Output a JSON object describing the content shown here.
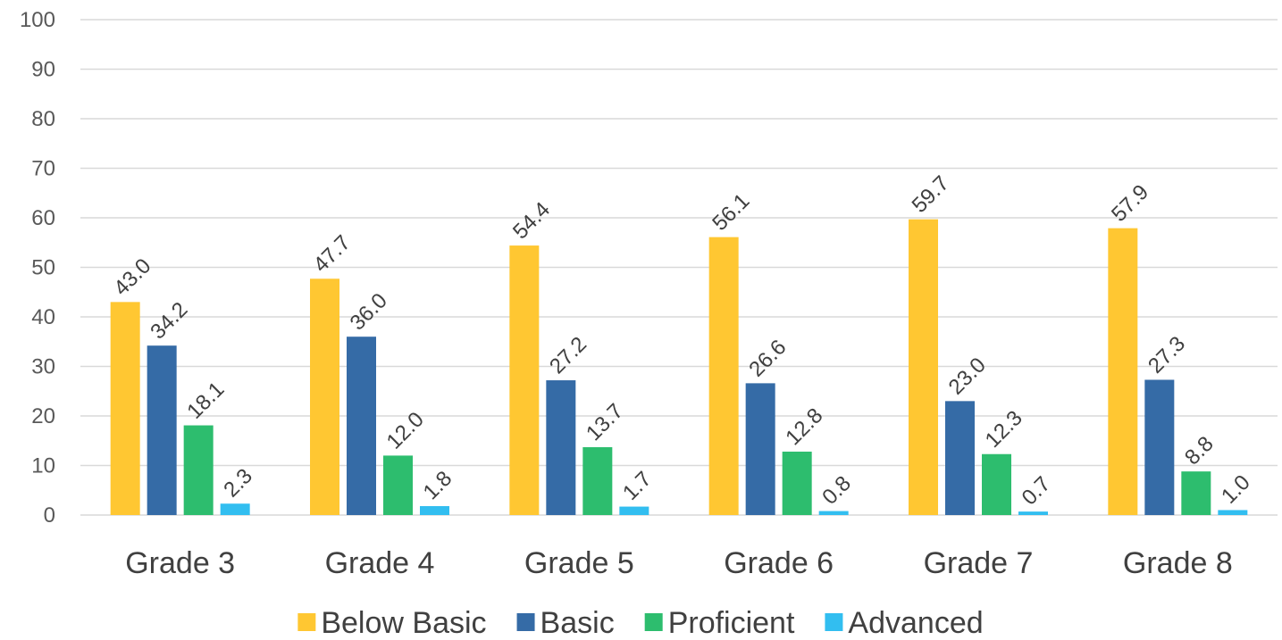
{
  "chart_data": {
    "type": "bar",
    "categories": [
      "Grade 3",
      "Grade 4",
      "Grade 5",
      "Grade 6",
      "Grade 7",
      "Grade 8"
    ],
    "series": [
      {
        "name": "Below Basic",
        "color": "#FFC732",
        "values": [
          43.0,
          47.7,
          54.4,
          56.1,
          59.7,
          57.9
        ]
      },
      {
        "name": "Basic",
        "color": "#356BA6",
        "values": [
          34.2,
          36.0,
          27.2,
          26.6,
          23.0,
          27.3
        ]
      },
      {
        "name": "Proficient",
        "color": "#2DBD6E",
        "values": [
          18.1,
          12.0,
          13.7,
          12.8,
          12.3,
          8.8
        ]
      },
      {
        "name": "Advanced",
        "color": "#32BEF0",
        "values": [
          2.3,
          1.8,
          1.7,
          0.8,
          0.7,
          1.0
        ]
      }
    ],
    "data_labels": [
      [
        "43.0",
        "47.7",
        "54.4",
        "56.1",
        "59.7",
        "57.9"
      ],
      [
        "34.2",
        "36.0",
        "27.2",
        "26.6",
        "23.0",
        "27.3"
      ],
      [
        "18.1",
        "12.0",
        "13.7",
        "12.8",
        "12.3",
        "8.8"
      ],
      [
        "2.3",
        "1.8",
        "1.7",
        "0.8",
        "0.7",
        "1.0"
      ]
    ],
    "y_ticks": [
      "0",
      "10",
      "20",
      "30",
      "40",
      "50",
      "60",
      "70",
      "80",
      "90",
      "100"
    ],
    "ylim": [
      0,
      100
    ],
    "title": "",
    "xlabel": "",
    "ylabel": "",
    "grid": true,
    "legend_position": "bottom"
  }
}
